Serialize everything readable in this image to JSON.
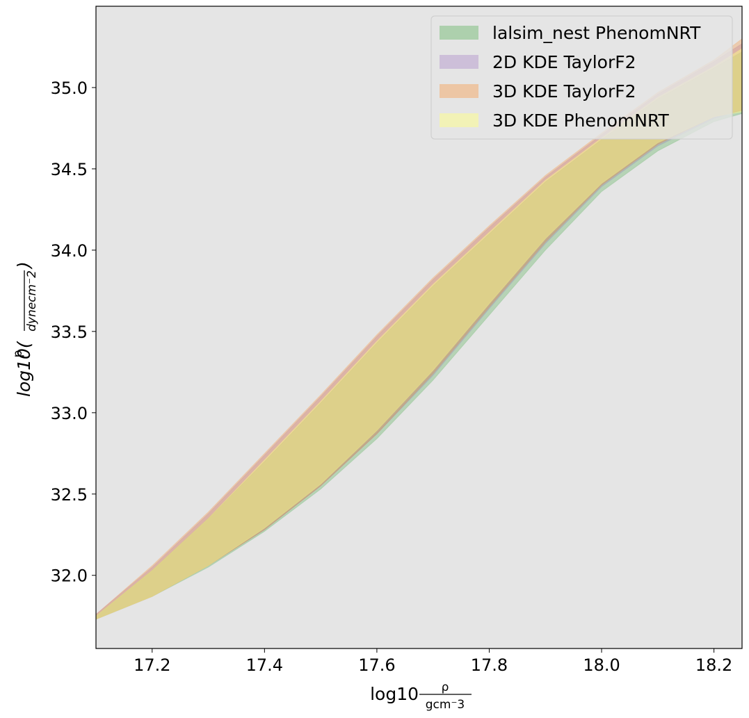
{
  "chart_data": {
    "type": "area",
    "title": "",
    "xlabel": {
      "base": "log10",
      "num": "ρ",
      "den": "gcm⁻3"
    },
    "ylabel": {
      "base": "log10(",
      "num": "p",
      "den": "dynecm⁻2",
      "close": ")"
    },
    "xlim": [
      17.1,
      18.25
    ],
    "ylim": [
      31.55,
      35.5
    ],
    "xticks": [
      17.2,
      17.4,
      17.6,
      17.8,
      18.0,
      18.2
    ],
    "xtick_labels": [
      "17.2",
      "17.4",
      "17.6",
      "17.8",
      "18.0",
      "18.2"
    ],
    "yticks": [
      32.0,
      32.5,
      33.0,
      33.5,
      34.0,
      34.5,
      35.0
    ],
    "ytick_labels": [
      "32.0",
      "32.5",
      "33.0",
      "33.5",
      "34.0",
      "34.5",
      "35.0"
    ],
    "grid": false,
    "legend_position": "top-right",
    "background": "#e5e5e5",
    "x": [
      17.1,
      17.2,
      17.3,
      17.4,
      17.5,
      17.6,
      17.7,
      17.8,
      17.9,
      18.0,
      18.1,
      18.2,
      18.25
    ],
    "series": [
      {
        "name": "lalsim_nest PhenomNRT",
        "color": "#2ca02c",
        "alpha": 0.25,
        "lower": [
          31.73,
          31.87,
          32.05,
          32.27,
          32.53,
          32.84,
          33.2,
          33.6,
          34.0,
          34.36,
          34.61,
          34.79,
          34.84
        ],
        "upper": [
          31.75,
          32.03,
          32.35,
          32.7,
          33.06,
          33.43,
          33.78,
          34.1,
          34.42,
          34.68,
          34.93,
          35.12,
          35.22
        ]
      },
      {
        "name": "2D KDE TaylorF2",
        "color": "#9467bd",
        "alpha": 0.25,
        "lower": [
          31.73,
          31.87,
          32.06,
          32.28,
          32.55,
          32.87,
          33.23,
          33.64,
          34.04,
          34.39,
          34.64,
          34.81,
          34.86
        ],
        "upper": [
          31.76,
          32.05,
          32.38,
          32.74,
          33.1,
          33.47,
          33.82,
          34.14,
          34.45,
          34.71,
          34.96,
          35.16,
          35.27
        ]
      },
      {
        "name": "3D KDE TaylorF2",
        "color": "#ff7f0e",
        "alpha": 0.25,
        "lower": [
          31.73,
          31.87,
          32.06,
          32.28,
          32.55,
          32.87,
          33.24,
          33.65,
          34.05,
          34.4,
          34.65,
          34.82,
          34.86
        ],
        "upper": [
          31.76,
          32.06,
          32.39,
          32.75,
          33.11,
          33.48,
          33.83,
          34.15,
          34.46,
          34.72,
          34.97,
          35.17,
          35.3
        ]
      },
      {
        "name": "3D KDE PhenomNRT",
        "color": "#ffff88",
        "alpha": 0.45,
        "lower": [
          31.73,
          31.87,
          32.06,
          32.29,
          32.56,
          32.89,
          33.26,
          33.67,
          34.07,
          34.41,
          34.66,
          34.82,
          34.85
        ],
        "upper": [
          31.75,
          32.03,
          32.35,
          32.71,
          33.07,
          33.44,
          33.79,
          34.11,
          34.43,
          34.69,
          34.94,
          35.13,
          35.24
        ]
      }
    ]
  }
}
